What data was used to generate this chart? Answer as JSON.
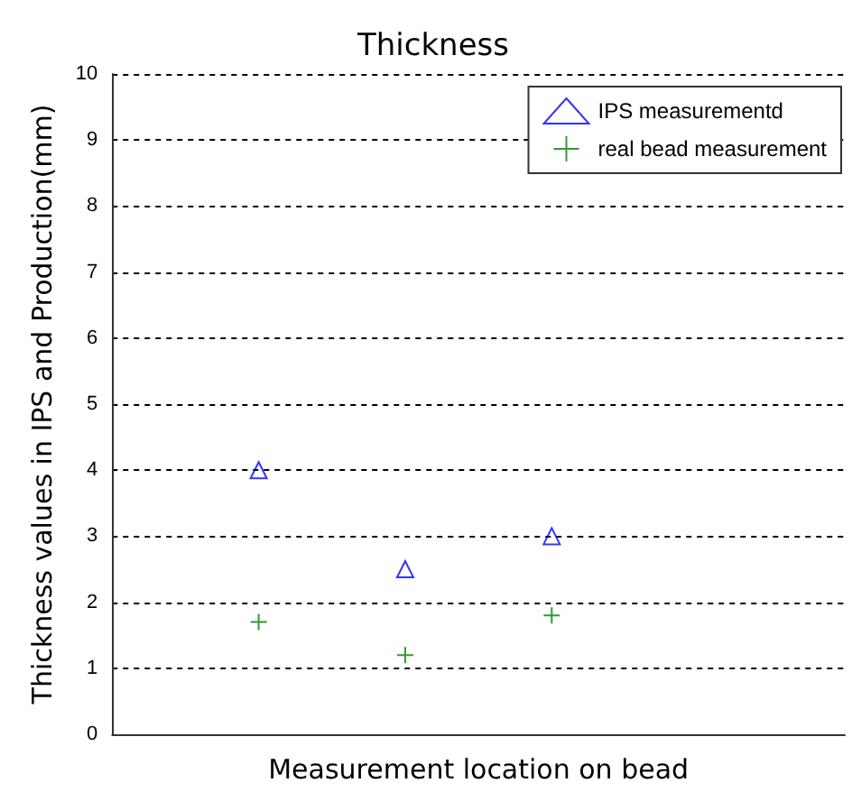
{
  "chart_data": {
    "type": "scatter",
    "title": "Thickness",
    "xlabel": "Measurement location on bead",
    "ylabel": "Thickness values in IPS and Production(mm)",
    "categories": [
      null,
      null,
      null,
      null,
      null,
      null
    ],
    "series": [
      {
        "name": "IPS measurementd",
        "color": "#0000ff",
        "marker": "triangle",
        "values": [
          null,
          4,
          2.5,
          3,
          null,
          null
        ]
      },
      {
        "name": "real bead measurement",
        "color": "#008000",
        "marker": "cross",
        "values": [
          null,
          1.7,
          1.2,
          1.8,
          null,
          null
        ]
      }
    ],
    "ylim": [
      0,
      10
    ],
    "yticks": [
      0,
      1,
      2,
      3,
      4,
      5,
      6,
      7,
      8,
      9,
      10
    ],
    "grid": "y",
    "legend": "top right",
    "tick_labels": "y"
  }
}
